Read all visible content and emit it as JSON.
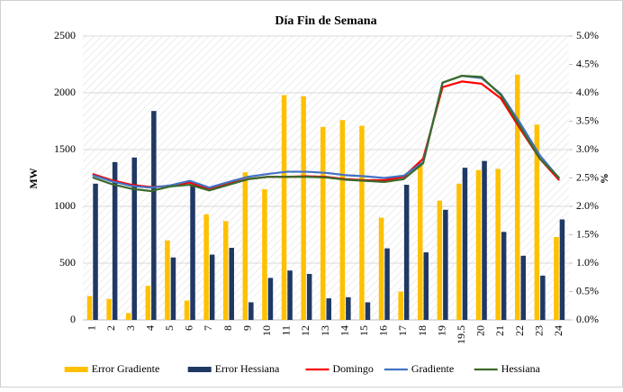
{
  "chart_data": {
    "type": "bar_line",
    "title": "Día Fin de Semana",
    "y_label": "MW",
    "y2_label": "%",
    "categories": [
      "1",
      "2",
      "3",
      "4",
      "5",
      "6",
      "7",
      "8",
      "9",
      "10",
      "11",
      "12",
      "13",
      "14",
      "15",
      "16",
      "17",
      "18",
      "19",
      "19.5",
      "20",
      "21",
      "22",
      "23",
      "24"
    ],
    "ylim": [
      0,
      2500
    ],
    "yticks": [
      0,
      500,
      1000,
      1500,
      2000,
      2500
    ],
    "y2lim": [
      0,
      5
    ],
    "y2ticks": [
      {
        "value": 0,
        "label": "0.0%"
      },
      {
        "value": 0.5,
        "label": "0.5%"
      },
      {
        "value": 1,
        "label": "1.0%"
      },
      {
        "value": 1.5,
        "label": "1.5%"
      },
      {
        "value": 2,
        "label": "2.0%"
      },
      {
        "value": 2.5,
        "label": "2.5%"
      },
      {
        "value": 3,
        "label": "3.0%"
      },
      {
        "value": 3.5,
        "label": "3.5%"
      },
      {
        "value": 4,
        "label": "4.0%"
      },
      {
        "value": 4.5,
        "label": "4.5%"
      },
      {
        "value": 5,
        "label": "5.0%"
      }
    ],
    "grid": true,
    "legend": "bottom",
    "series": [
      {
        "name": "Error Gradiente",
        "kind": "bar",
        "axis": "y2",
        "color": "#FFC000",
        "values": [
          0.42,
          0.37,
          0.12,
          0.6,
          1.4,
          0.34,
          1.86,
          1.74,
          2.6,
          2.3,
          3.96,
          3.94,
          3.4,
          3.52,
          3.42,
          1.8,
          0.5,
          2.76,
          2.1,
          2.4,
          2.64,
          2.66,
          4.32,
          3.44,
          1.46
        ]
      },
      {
        "name": "Error Hessiana",
        "kind": "bar",
        "axis": "y2",
        "color": "#1F3864",
        "values": [
          2.4,
          2.78,
          2.86,
          3.68,
          1.1,
          2.38,
          1.15,
          1.27,
          0.31,
          0.74,
          0.87,
          0.81,
          0.38,
          0.4,
          0.31,
          1.26,
          2.38,
          1.19,
          1.94,
          2.68,
          2.8,
          1.55,
          1.13,
          0.78,
          1.77
        ]
      },
      {
        "name": "Domingo",
        "kind": "line",
        "color": "#FF0000",
        "values": [
          1285,
          1230,
          1190,
          1170,
          1180,
          1210,
          1150,
          1200,
          1240,
          1260,
          1260,
          1265,
          1260,
          1240,
          1230,
          1230,
          1260,
          1420,
          2050,
          2100,
          2080,
          1950,
          1680,
          1420,
          1230
        ]
      },
      {
        "name": "Gradiente",
        "kind": "line",
        "color": "#4472C4",
        "values": [
          1275,
          1220,
          1180,
          1165,
          1185,
          1225,
          1165,
          1215,
          1260,
          1285,
          1305,
          1305,
          1295,
          1275,
          1265,
          1250,
          1270,
          1390,
          2090,
          2150,
          2130,
          1990,
          1730,
          1450,
          1245
        ]
      },
      {
        "name": "Hessiana",
        "kind": "line",
        "color": "#3B6B2A",
        "values": [
          1255,
          1195,
          1155,
          1135,
          1175,
          1190,
          1140,
          1190,
          1240,
          1260,
          1260,
          1260,
          1255,
          1235,
          1225,
          1215,
          1240,
          1380,
          2090,
          2150,
          2140,
          1980,
          1700,
          1420,
          1250
        ]
      }
    ]
  }
}
